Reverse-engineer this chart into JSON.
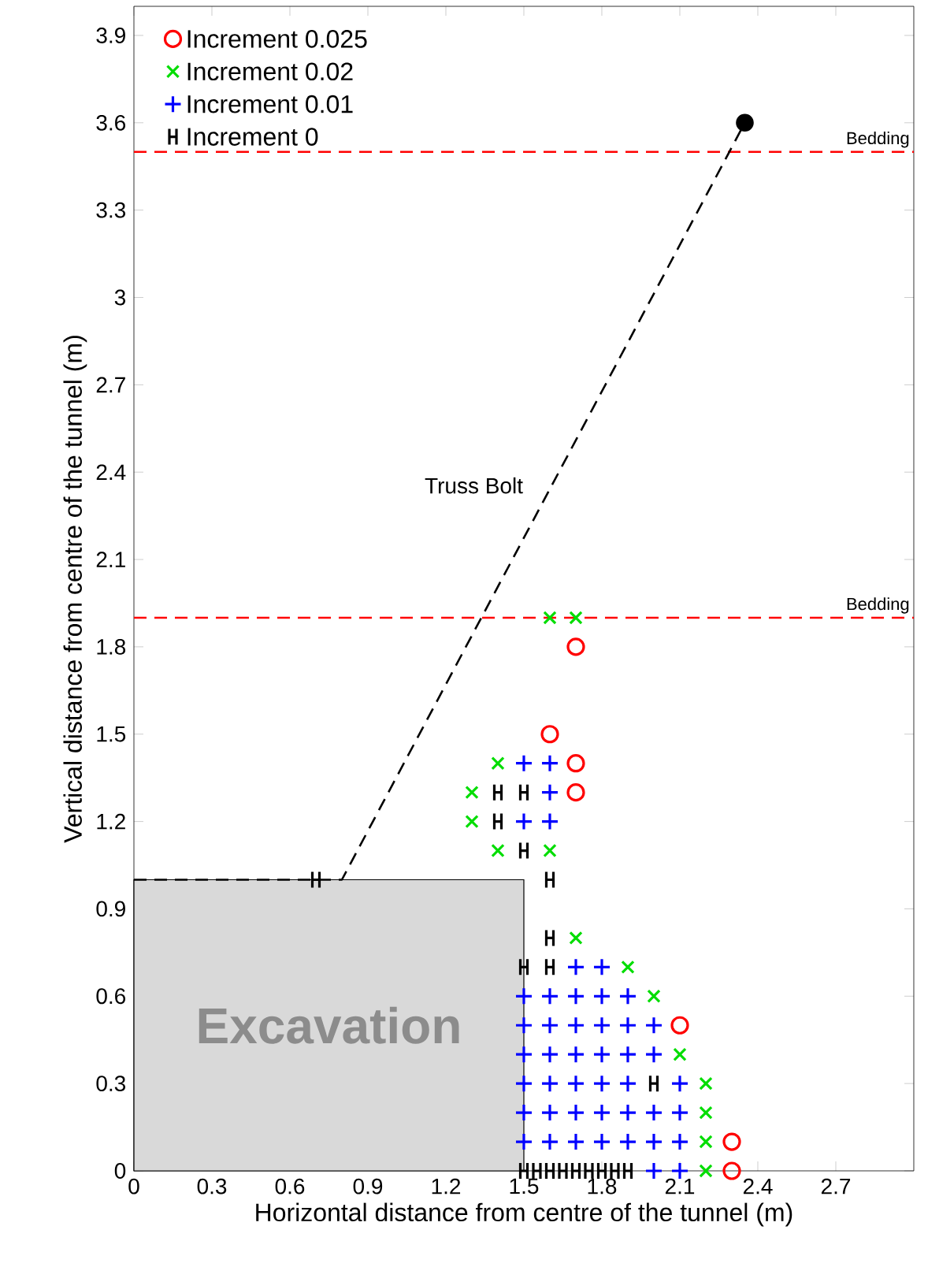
{
  "chart_data": {
    "type": "scatter",
    "xlabel": "Horizontal distance from centre of the tunnel (m)",
    "ylabel": "Vertical distance from centre of the tunnel (m)",
    "xlim": [
      0,
      3
    ],
    "ylim": [
      0,
      4
    ],
    "xticks": [
      0,
      0.3,
      0.6,
      0.9,
      1.2,
      1.5,
      1.8,
      2.1,
      2.4,
      2.7
    ],
    "yticks": [
      0,
      0.3,
      0.6,
      0.9,
      1.2,
      1.5,
      1.8,
      2.1,
      2.4,
      2.7,
      3,
      3.3,
      3.6,
      3.9
    ],
    "grid": false,
    "legend": "top left",
    "ref_lines": [
      {
        "axis": "y",
        "value": 3.5,
        "label": "Bedding",
        "color": "#ff0000",
        "line_style": "dashed"
      },
      {
        "axis": "y",
        "value": 1.9,
        "label": "Bedding",
        "color": "#ff0000",
        "line_style": "dashed"
      }
    ],
    "series": [
      {
        "type": "area",
        "name": "Excavation",
        "color": "#d9d9d9",
        "x": [
          0,
          1.5
        ],
        "values": [
          1,
          1
        ]
      },
      {
        "type": "line",
        "name": "Truss Bolt",
        "color": "#000000",
        "line_style": "dashed",
        "marker": "none",
        "x": [
          0,
          0.8,
          2.35
        ],
        "values": [
          1,
          1,
          3.6
        ]
      },
      {
        "type": "line",
        "color": "#000000",
        "marker": "circle",
        "x": [
          2.35
        ],
        "values": [
          3.6
        ]
      },
      {
        "name": "Increment 0.025",
        "color": "#ff0000",
        "marker": "circle",
        "x": [
          1.7,
          1.6,
          1.7,
          1.7,
          2.1,
          2.3,
          2.3
        ],
        "values": [
          1.8,
          1.5,
          1.4,
          1.3,
          0.5,
          0.1,
          0
        ]
      },
      {
        "name": "Increment 0.02",
        "color": "#00dd00",
        "marker": "cross",
        "x": [
          1.6,
          1.7,
          1.4,
          1.3,
          1.3,
          1.4,
          1.6,
          1.7,
          1.9,
          2.0,
          2.1,
          2.2,
          2.2,
          2.2,
          2.2
        ],
        "values": [
          1.9,
          1.9,
          1.4,
          1.3,
          1.2,
          1.1,
          1.1,
          0.8,
          0.7,
          0.6,
          0.4,
          0.3,
          0.2,
          0.1,
          0
        ]
      },
      {
        "name": "Increment 0.01",
        "color": "#0000ff",
        "marker": "plus",
        "x": [
          2.0,
          2.1,
          1.5,
          1.6,
          1.7,
          1.8,
          1.9,
          2.0,
          2.1,
          1.5,
          1.6,
          1.7,
          1.8,
          1.9,
          2.0,
          2.1,
          1.5,
          1.6,
          1.7,
          1.8,
          1.9,
          2.1,
          1.5,
          1.6,
          1.7,
          1.8,
          1.9,
          2.0,
          1.5,
          1.6,
          1.7,
          1.8,
          1.9,
          2.0,
          1.5,
          1.6,
          1.7,
          1.8,
          1.9,
          1.7,
          1.8,
          1.5,
          1.6,
          1.6,
          1.5,
          1.6
        ],
        "values": [
          0,
          0,
          0.1,
          0.1,
          0.1,
          0.1,
          0.1,
          0.1,
          0.1,
          0.2,
          0.2,
          0.2,
          0.2,
          0.2,
          0.2,
          0.2,
          0.3,
          0.3,
          0.3,
          0.3,
          0.3,
          0.3,
          0.4,
          0.4,
          0.4,
          0.4,
          0.4,
          0.4,
          0.5,
          0.5,
          0.5,
          0.5,
          0.5,
          0.5,
          0.6,
          0.6,
          0.6,
          0.6,
          0.6,
          0.7,
          0.7,
          1.2,
          1.2,
          1.3,
          1.4,
          1.4
        ]
      },
      {
        "name": "Increment 0",
        "color": "#000000",
        "x": [
          1.5,
          1.55,
          1.6,
          1.65,
          1.7,
          1.75,
          1.8,
          1.85,
          1.9,
          2.0,
          1.5,
          1.6,
          1.6,
          1.6,
          0.7,
          1.5,
          1.4,
          1.4,
          1.5
        ],
        "values": [
          0,
          0,
          0,
          0,
          0,
          0,
          0,
          0,
          0,
          0.3,
          0.7,
          0.7,
          0.8,
          1.0,
          1.0,
          1.1,
          1.2,
          1.3,
          1.3
        ]
      }
    ]
  }
}
